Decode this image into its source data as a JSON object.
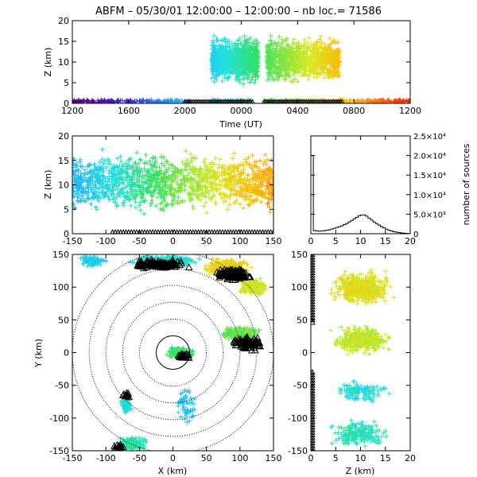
{
  "title": "ABFM – 05/30/01 12:00:00 – 12:00:00 – nb loc.=  71586",
  "colors": {
    "background": "#ffffff",
    "axes": "#000000",
    "markers_black": "#000000"
  },
  "chart_data": [
    {
      "id": "time-height",
      "type": "scatter",
      "xlabel": "Time (UT)",
      "ylabel": "Z (km)",
      "x_ticklabels": [
        "1200",
        "1600",
        "2000",
        "0000",
        "0400",
        "0800",
        "1200"
      ],
      "y_ticks": [
        0,
        5,
        10,
        15,
        20
      ],
      "ylim": [
        0,
        20
      ],
      "series": [
        {
          "color_scale": "rainbow (purple → blue → cyan → green → yellow → orange → red)",
          "x_hours_range": [
            0,
            24
          ]
        }
      ]
    },
    {
      "id": "x-height",
      "type": "scatter",
      "xlabel": "",
      "ylabel": "Z (km)",
      "x_ticks": [
        -150,
        -100,
        -50,
        0,
        50,
        100,
        150
      ],
      "y_ticks": [
        0,
        5,
        10,
        15,
        20
      ],
      "xlim": [
        -150,
        150
      ],
      "ylim": [
        0,
        20
      ]
    },
    {
      "id": "height-histogram",
      "type": "line",
      "xlabel": "",
      "ylabel": "number of sources",
      "x_ticks": [
        0,
        5,
        10,
        15,
        20
      ],
      "y_ticklabels": [
        "0",
        "5.0×10³",
        "1.0×10⁴",
        "1.5×10⁴",
        "2.0×10⁴",
        "2.5×10⁴"
      ],
      "xlim": [
        0,
        20
      ],
      "ylim": [
        0,
        25000
      ],
      "x": [
        0,
        0.5,
        1,
        1.5,
        2,
        2.5,
        3,
        3.5,
        4,
        4.5,
        5,
        5.5,
        6,
        6.5,
        7,
        7.5,
        8,
        8.5,
        9,
        9.5,
        10,
        10.5,
        11,
        11.5,
        12,
        12.5,
        13,
        13.5,
        14,
        14.5,
        15,
        15.5,
        16,
        16.5,
        17,
        17.5,
        18,
        18.5,
        19,
        19.5,
        20
      ],
      "values": [
        20000,
        800,
        700,
        650,
        700,
        800,
        900,
        1000,
        1200,
        1400,
        1600,
        1800,
        2000,
        2300,
        2600,
        3000,
        3400,
        3800,
        4200,
        4600,
        4800,
        4800,
        4500,
        4000,
        3500,
        3000,
        2600,
        2200,
        1800,
        1500,
        1200,
        900,
        700,
        500,
        400,
        300,
        200,
        150,
        100,
        50,
        20
      ]
    },
    {
      "id": "plan-view",
      "type": "scatter",
      "xlabel": "X (km)",
      "ylabel": "Y (km)",
      "x_ticks": [
        -150,
        -100,
        -50,
        0,
        50,
        100,
        150
      ],
      "y_ticks": [
        -150,
        -100,
        -50,
        0,
        50,
        100,
        150
      ],
      "xlim": [
        -150,
        150
      ],
      "ylim": [
        -150,
        150
      ],
      "range_rings_km": [
        25,
        50,
        75,
        100,
        125,
        150
      ]
    },
    {
      "id": "height-y",
      "type": "scatter",
      "xlabel": "Z (km)",
      "ylabel": "",
      "x_ticks": [
        0,
        5,
        10,
        15,
        20
      ],
      "y_ticks": [
        -150,
        -100,
        -50,
        0,
        50,
        100,
        150
      ],
      "xlim": [
        0,
        20
      ],
      "ylim": [
        -150,
        150
      ]
    }
  ]
}
